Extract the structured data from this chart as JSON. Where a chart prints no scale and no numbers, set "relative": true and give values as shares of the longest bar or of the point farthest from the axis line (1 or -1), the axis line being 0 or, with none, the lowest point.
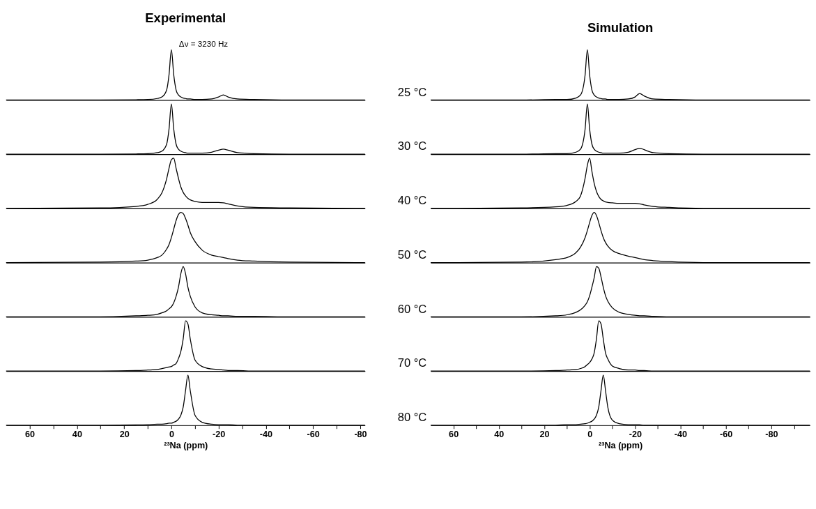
{
  "chart_data": [
    {
      "type": "line",
      "title": "Experimental",
      "annotations": [
        "Δν = 3230 Hz"
      ],
      "relative": true,
      "tick_labels": false,
      "xlim": [
        70,
        -82
      ],
      "x": [
        70,
        30,
        15,
        10,
        6,
        4,
        2,
        1,
        0,
        -1,
        -2,
        -3,
        -4,
        -5,
        -6,
        -7,
        -8,
        -10,
        -13,
        -17,
        -20,
        -22,
        -24,
        -28,
        -35,
        -50,
        -82
      ],
      "series": [
        {
          "color": "#000000",
          "values": [
            0,
            0,
            0.005,
            0.01,
            0.03,
            0.06,
            0.2,
            0.5,
            1,
            0.5,
            0.2,
            0.1,
            0.06,
            0.04,
            0.03,
            0.02,
            0.02,
            0.01,
            0.01,
            0.02,
            0.06,
            0.1,
            0.06,
            0.02,
            0.01,
            0,
            0
          ]
        }
      ]
    },
    {
      "type": "line",
      "relative": true,
      "tick_labels": false,
      "xlim": [
        70,
        -82
      ],
      "x": [
        70,
        30,
        15,
        10,
        6,
        4,
        2,
        1,
        0,
        -1,
        -2,
        -3,
        -4,
        -5,
        -6,
        -7,
        -8,
        -10,
        -13,
        -17,
        -20,
        -22,
        -24,
        -28,
        -35,
        -50,
        -82
      ],
      "series": [
        {
          "color": "#000000",
          "values": [
            0,
            0,
            0.005,
            0.01,
            0.03,
            0.06,
            0.2,
            0.5,
            1,
            0.5,
            0.2,
            0.1,
            0.06,
            0.04,
            0.03,
            0.02,
            0.02,
            0.02,
            0.02,
            0.04,
            0.08,
            0.1,
            0.08,
            0.03,
            0.01,
            0,
            0
          ]
        }
      ]
    },
    {
      "type": "line",
      "relative": true,
      "tick_labels": false,
      "xlim": [
        70,
        -82
      ],
      "x": [
        70,
        30,
        15,
        10,
        6,
        4,
        2,
        1,
        0,
        -1,
        -2,
        -3,
        -4,
        -5,
        -6,
        -7,
        -8,
        -10,
        -13,
        -17,
        -20,
        -22,
        -24,
        -28,
        -35,
        -50,
        -82
      ],
      "series": [
        {
          "color": "#000000",
          "values": [
            0,
            0.01,
            0.04,
            0.08,
            0.18,
            0.31,
            0.59,
            0.8,
            0.97,
            1,
            0.8,
            0.6,
            0.43,
            0.32,
            0.25,
            0.2,
            0.17,
            0.14,
            0.12,
            0.12,
            0.12,
            0.11,
            0.09,
            0.05,
            0.02,
            0.01,
            0
          ]
        }
      ]
    },
    {
      "type": "line",
      "relative": true,
      "tick_labels": false,
      "xlim": [
        70,
        -82
      ],
      "x": [
        70,
        30,
        15,
        10,
        6,
        4,
        2,
        1,
        0,
        -1,
        -2,
        -3,
        -4,
        -5,
        -6,
        -7,
        -8,
        -10,
        -13,
        -17,
        -20,
        -22,
        -24,
        -28,
        -35,
        -50,
        -82
      ],
      "series": [
        {
          "color": "#000000",
          "values": [
            0,
            0.01,
            0.03,
            0.05,
            0.1,
            0.15,
            0.27,
            0.36,
            0.5,
            0.67,
            0.84,
            0.96,
            1,
            0.98,
            0.88,
            0.75,
            0.6,
            0.42,
            0.25,
            0.15,
            0.12,
            0.1,
            0.08,
            0.05,
            0.03,
            0.01,
            0
          ]
        }
      ]
    },
    {
      "type": "line",
      "relative": true,
      "tick_labels": false,
      "xlim": [
        70,
        -82
      ],
      "x": [
        70,
        30,
        15,
        10,
        6,
        4,
        2,
        1,
        0,
        -1,
        -2,
        -3,
        -4,
        -5,
        -6,
        -7,
        -8,
        -10,
        -13,
        -17,
        -20,
        -22,
        -24,
        -28,
        -35,
        -50,
        -82
      ],
      "series": [
        {
          "color": "#000000",
          "values": [
            0,
            0,
            0.02,
            0.03,
            0.05,
            0.08,
            0.12,
            0.16,
            0.2,
            0.28,
            0.41,
            0.59,
            0.86,
            1,
            0.86,
            0.59,
            0.41,
            0.2,
            0.08,
            0.04,
            0.03,
            0.02,
            0.02,
            0.01,
            0.01,
            0,
            0
          ]
        }
      ]
    },
    {
      "type": "line",
      "relative": true,
      "tick_labels": false,
      "xlim": [
        70,
        -82
      ],
      "x": [
        70,
        30,
        15,
        10,
        6,
        4,
        2,
        1,
        0,
        -1,
        -2,
        -3,
        -4,
        -5,
        -6,
        -7,
        -8,
        -10,
        -13,
        -17,
        -20,
        -22,
        -24,
        -28,
        -35,
        -50,
        -82
      ],
      "series": [
        {
          "color": "#000000",
          "values": [
            0,
            0,
            0.01,
            0.02,
            0.03,
            0.05,
            0.07,
            0.08,
            0.09,
            0.12,
            0.15,
            0.25,
            0.39,
            0.64,
            1,
            0.94,
            0.64,
            0.22,
            0.09,
            0.04,
            0.03,
            0.02,
            0.01,
            0.01,
            0,
            0,
            0
          ]
        }
      ]
    },
    {
      "type": "line",
      "relative": true,
      "xlabel": "²³Na (ppm)",
      "xlim": [
        70,
        -82
      ],
      "xticks": [
        60,
        {
          "value": 50,
          "label": null
        },
        40,
        {
          "value": 30,
          "label": null
        },
        20,
        {
          "value": 10,
          "label": null
        },
        0,
        {
          "value": -10,
          "label": null
        },
        -20,
        {
          "value": -30,
          "label": null
        },
        -40,
        {
          "value": -50,
          "label": null
        },
        -60,
        {
          "value": -70,
          "label": null
        },
        -80
      ],
      "x": [
        70,
        30,
        15,
        10,
        6,
        4,
        2,
        1,
        0,
        -1,
        -2,
        -3,
        -4,
        -5,
        -6,
        -7,
        -8,
        -10,
        -13,
        -17,
        -20,
        -22,
        -24,
        -28,
        -35,
        -50,
        -82
      ],
      "series": [
        {
          "color": "#000000",
          "values": [
            0,
            0,
            0.005,
            0.01,
            0.02,
            0.02,
            0.03,
            0.04,
            0.04,
            0.06,
            0.08,
            0.12,
            0.2,
            0.36,
            0.69,
            1,
            0.69,
            0.2,
            0.06,
            0.02,
            0.01,
            0.01,
            0.01,
            0,
            0,
            0,
            0
          ]
        }
      ]
    },
    {
      "type": "line",
      "title": "Simulation",
      "relative": true,
      "tick_labels": false,
      "xlim": [
        70,
        -97
      ],
      "x": [
        70,
        30,
        15,
        10,
        6,
        4,
        2,
        1,
        0,
        -1,
        -2,
        -3,
        -4,
        -5,
        -6,
        -7,
        -8,
        -10,
        -13,
        -17,
        -20,
        -22,
        -24,
        -28,
        -35,
        -50,
        -97
      ],
      "series": [
        {
          "name": "25 °C",
          "color": "#000000",
          "values": [
            0,
            0,
            0.01,
            0.01,
            0.04,
            0.1,
            0.5,
            1,
            0.5,
            0.2,
            0.1,
            0.06,
            0.04,
            0.03,
            0.02,
            0.02,
            0.01,
            0.01,
            0.01,
            0.02,
            0.06,
            0.13,
            0.08,
            0.02,
            0.01,
            0,
            0
          ]
        }
      ]
    },
    {
      "type": "line",
      "relative": true,
      "tick_labels": false,
      "xlim": [
        70,
        -97
      ],
      "x": [
        70,
        30,
        15,
        10,
        6,
        4,
        2,
        1,
        0,
        -1,
        -2,
        -3,
        -4,
        -5,
        -6,
        -7,
        -8,
        -10,
        -13,
        -17,
        -20,
        -22,
        -24,
        -28,
        -35,
        -50,
        -97
      ],
      "series": [
        {
          "name": "30 °C",
          "color": "#000000",
          "values": [
            0,
            0,
            0.01,
            0.01,
            0.04,
            0.1,
            0.5,
            1,
            0.5,
            0.2,
            0.1,
            0.06,
            0.04,
            0.03,
            0.02,
            0.02,
            0.02,
            0.02,
            0.02,
            0.04,
            0.09,
            0.12,
            0.09,
            0.03,
            0.01,
            0,
            0
          ]
        }
      ]
    },
    {
      "type": "line",
      "relative": true,
      "tick_labels": false,
      "xlim": [
        70,
        -97
      ],
      "x": [
        70,
        30,
        15,
        10,
        6,
        4,
        2,
        1,
        0,
        -1,
        -2,
        -3,
        -4,
        -5,
        -6,
        -7,
        -8,
        -10,
        -13,
        -17,
        -20,
        -22,
        -24,
        -28,
        -35,
        -50,
        -97
      ],
      "series": [
        {
          "name": "40 °C",
          "color": "#000000",
          "values": [
            0,
            0.01,
            0.03,
            0.06,
            0.14,
            0.25,
            0.6,
            0.86,
            1,
            0.74,
            0.5,
            0.34,
            0.24,
            0.18,
            0.15,
            0.13,
            0.12,
            0.11,
            0.1,
            0.1,
            0.1,
            0.09,
            0.07,
            0.04,
            0.02,
            0,
            0
          ]
        }
      ]
    },
    {
      "type": "line",
      "relative": true,
      "tick_labels": false,
      "xlim": [
        70,
        -97
      ],
      "x": [
        70,
        30,
        15,
        10,
        6,
        4,
        2,
        1,
        0,
        -1,
        -2,
        -3,
        -4,
        -5,
        -6,
        -7,
        -8,
        -10,
        -13,
        -17,
        -20,
        -22,
        -24,
        -28,
        -35,
        -50,
        -97
      ],
      "series": [
        {
          "name": "50 °C",
          "color": "#000000",
          "values": [
            0,
            0.01,
            0.06,
            0.1,
            0.2,
            0.31,
            0.5,
            0.64,
            0.8,
            0.94,
            1,
            0.94,
            0.8,
            0.64,
            0.5,
            0.4,
            0.33,
            0.24,
            0.18,
            0.13,
            0.1,
            0.08,
            0.06,
            0.04,
            0.02,
            0,
            0
          ]
        }
      ]
    },
    {
      "type": "line",
      "relative": true,
      "tick_labels": false,
      "xlim": [
        70,
        -97
      ],
      "x": [
        70,
        30,
        15,
        10,
        6,
        4,
        2,
        1,
        0,
        -1,
        -2,
        -3,
        -4,
        -5,
        -6,
        -7,
        -8,
        -10,
        -13,
        -17,
        -20,
        -22,
        -24,
        -28,
        -35,
        -50,
        -97
      ],
      "series": [
        {
          "name": "60 °C",
          "color": "#000000",
          "values": [
            0,
            0,
            0.02,
            0.04,
            0.09,
            0.14,
            0.23,
            0.3,
            0.42,
            0.59,
            0.78,
            1,
            0.97,
            0.8,
            0.59,
            0.42,
            0.31,
            0.18,
            0.09,
            0.05,
            0.03,
            0.02,
            0.02,
            0.01,
            0,
            0,
            0
          ]
        }
      ]
    },
    {
      "type": "line",
      "relative": true,
      "tick_labels": false,
      "xlim": [
        70,
        -97
      ],
      "x": [
        70,
        30,
        15,
        10,
        6,
        4,
        2,
        1,
        0,
        -1,
        -2,
        -3,
        -4,
        -5,
        -6,
        -7,
        -8,
        -10,
        -13,
        -17,
        -20,
        -22,
        -24,
        -28,
        -35,
        -50,
        -97
      ],
      "series": [
        {
          "name": "70 °C",
          "color": "#000000",
          "values": [
            0,
            0,
            0.01,
            0.02,
            0.03,
            0.05,
            0.09,
            0.13,
            0.17,
            0.24,
            0.36,
            0.64,
            1,
            0.94,
            0.64,
            0.36,
            0.24,
            0.1,
            0.05,
            0.02,
            0.02,
            0.01,
            0.01,
            0,
            0,
            0,
            0
          ]
        }
      ]
    },
    {
      "type": "line",
      "relative": true,
      "xlabel": "²³Na (ppm)",
      "xlim": [
        70,
        -97
      ],
      "xticks": [
        60,
        {
          "value": 50,
          "label": null
        },
        40,
        {
          "value": 30,
          "label": null
        },
        20,
        {
          "value": 10,
          "label": null
        },
        0,
        {
          "value": -10,
          "label": null
        },
        -20,
        {
          "value": -30,
          "label": null
        },
        -40,
        {
          "value": -50,
          "label": null
        },
        -60,
        {
          "value": -70,
          "label": null
        },
        -80,
        {
          "value": -90,
          "label": null
        }
      ],
      "x": [
        70,
        30,
        15,
        10,
        6,
        4,
        2,
        1,
        0,
        -1,
        -2,
        -3,
        -4,
        -5,
        -6,
        -7,
        -8,
        -10,
        -13,
        -17,
        -20,
        -22,
        -24,
        -28,
        -35,
        -50,
        -97
      ],
      "series": [
        {
          "name": "80 °C",
          "color": "#000000",
          "values": [
            0,
            0,
            0,
            0.01,
            0.01,
            0.02,
            0.03,
            0.04,
            0.06,
            0.08,
            0.12,
            0.2,
            0.36,
            0.69,
            1,
            0.69,
            0.36,
            0.1,
            0.03,
            0.01,
            0.01,
            0.01,
            0,
            0,
            0,
            0,
            0
          ]
        }
      ]
    }
  ]
}
